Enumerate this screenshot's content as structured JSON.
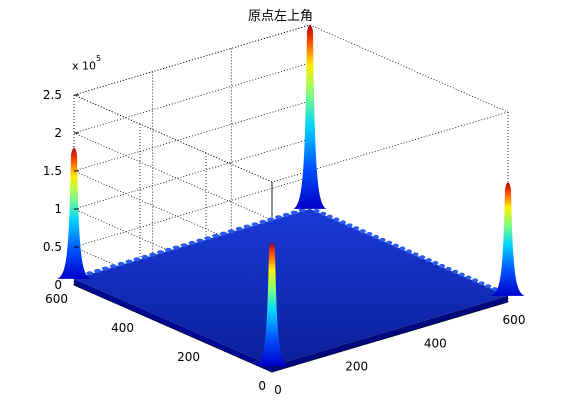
{
  "window": {
    "background": "#ffffff"
  },
  "chart_data": {
    "type": "surface",
    "title": "原点左上角",
    "colormap": "jet",
    "box": true,
    "grid": true,
    "x": {
      "label": "",
      "range": [
        0,
        600
      ],
      "ticks": [
        "0",
        "200",
        "400",
        "600"
      ]
    },
    "y": {
      "label": "",
      "range": [
        0,
        600
      ],
      "ticks": [
        "0",
        "200",
        "400",
        "600"
      ]
    },
    "z": {
      "label": "",
      "range": [
        0,
        2.5
      ],
      "ticks": [
        "0",
        "0.5",
        "1",
        "1.5",
        "2",
        "2.5"
      ],
      "scale_prefix": "x 10",
      "scale_exponent": "5"
    },
    "peaks": [
      {
        "x": 0,
        "y": 0,
        "z": 1.75
      },
      {
        "x": 600,
        "y": 0,
        "z": 1.62
      },
      {
        "x": 0,
        "y": 600,
        "z": 1.85
      },
      {
        "x": 600,
        "y": 600,
        "z": 2.55
      }
    ],
    "floor_level": 0.08
  }
}
